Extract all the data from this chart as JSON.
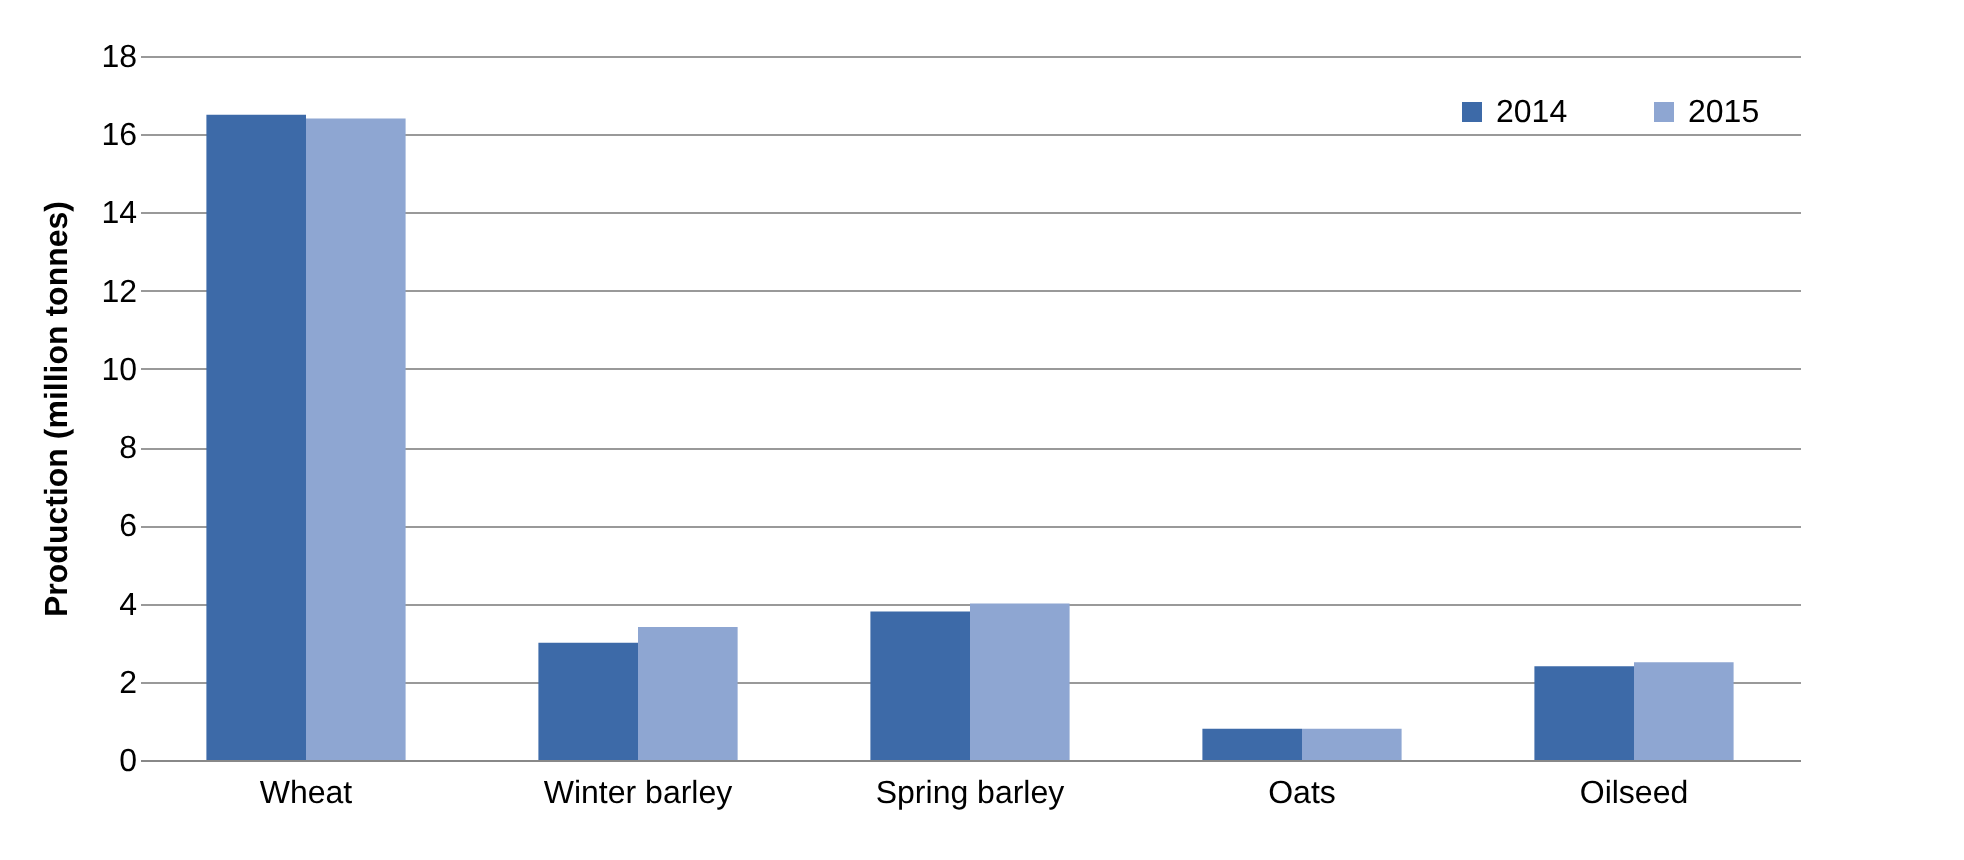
{
  "chart_data": {
    "type": "bar",
    "ylabel": "Production (million tonnes)",
    "categories": [
      "Wheat",
      "Winter barley",
      "Spring barley",
      "Oats",
      "Oilseed"
    ],
    "series": [
      {
        "name": "2014",
        "color": "#3d6aa8",
        "values": [
          16.5,
          3.0,
          3.8,
          0.8,
          2.4
        ]
      },
      {
        "name": "2015",
        "color": "#8ea6d2",
        "values": [
          16.4,
          3.4,
          4.0,
          0.8,
          2.5
        ]
      }
    ],
    "ylim": [
      0,
      18
    ],
    "yticks": [
      0,
      2,
      4,
      6,
      8,
      10,
      12,
      14,
      16,
      18
    ],
    "grid": "y",
    "legend": "top right"
  }
}
